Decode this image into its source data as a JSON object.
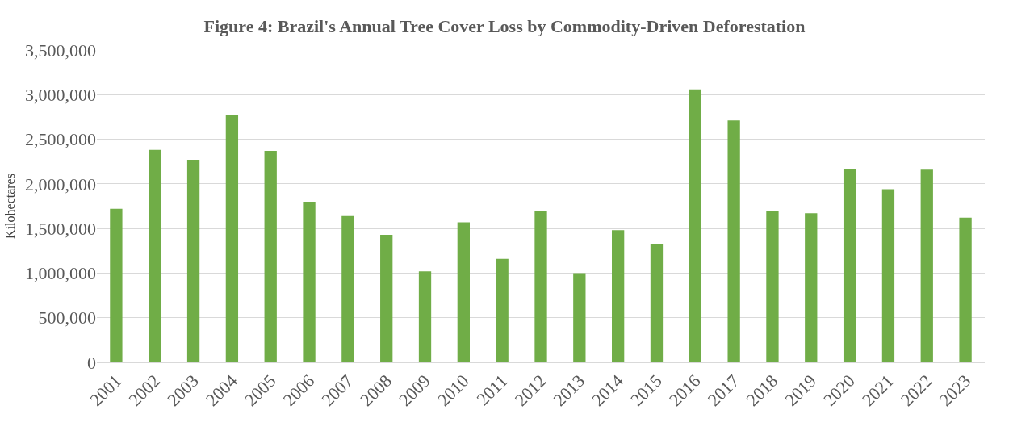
{
  "chart_data": {
    "type": "bar",
    "title": "Figure 4: Brazil's Annual Tree Cover Loss by Commodity-Driven Deforestation",
    "ylabel": "Kilohectares",
    "categories": [
      "2001",
      "2002",
      "2003",
      "2004",
      "2005",
      "2006",
      "2007",
      "2008",
      "2009",
      "2010",
      "2011",
      "2012",
      "2013",
      "2014",
      "2015",
      "2016",
      "2017",
      "2018",
      "2019",
      "2020",
      "2021",
      "2022",
      "2023"
    ],
    "values": [
      1720000,
      2380000,
      2270000,
      2770000,
      2370000,
      1800000,
      1640000,
      1430000,
      1020000,
      1570000,
      1160000,
      1700000,
      1000000,
      1480000,
      1330000,
      3060000,
      2710000,
      1700000,
      1670000,
      2170000,
      1940000,
      2160000,
      1620000
    ],
    "color": "#70ad47",
    "ylim": [
      0,
      3500000
    ],
    "yticks": [
      {
        "value": 0,
        "label": "0"
      },
      {
        "value": 500000,
        "label": "500,000"
      },
      {
        "value": 1000000,
        "label": "1,000,000"
      },
      {
        "value": 1500000,
        "label": "1,500,000"
      },
      {
        "value": 2000000,
        "label": "2,000,000"
      },
      {
        "value": 2500000,
        "label": "2,500,000"
      },
      {
        "value": 3000000,
        "label": "3,000,000"
      },
      {
        "value": 3500000,
        "label": "3,500,000"
      }
    ],
    "grid": "y",
    "legend": false
  }
}
